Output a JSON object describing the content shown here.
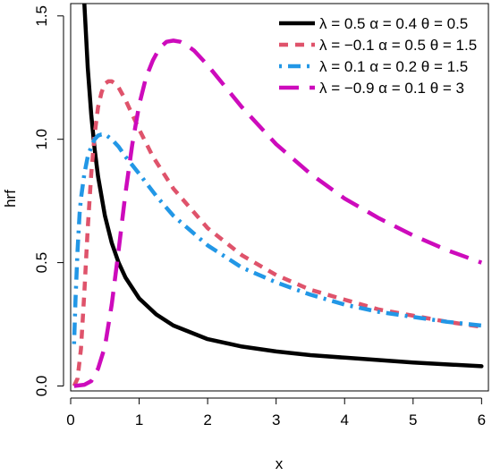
{
  "chart_data": {
    "type": "line",
    "xlabel": "x",
    "ylabel": "hrf",
    "xlim": [
      0,
      6.1
    ],
    "ylim": [
      -0.02,
      1.55
    ],
    "x_ticks": [
      {
        "value": 0,
        "label": "0"
      },
      {
        "value": 1,
        "label": "1"
      },
      {
        "value": 2,
        "label": "2"
      },
      {
        "value": 3,
        "label": "3"
      },
      {
        "value": 4,
        "label": "4"
      },
      {
        "value": 5,
        "label": "5"
      },
      {
        "value": 6,
        "label": "6"
      }
    ],
    "y_ticks": [
      {
        "value": 0.0,
        "label": "0.0"
      },
      {
        "value": 0.5,
        "label": "0.5"
      },
      {
        "value": 1.0,
        "label": "1.0"
      },
      {
        "value": 1.5,
        "label": "1.5"
      }
    ],
    "grid": false,
    "legend_position": "top-right",
    "series": [
      {
        "name": "λ = 0.5  α = 0.4  θ = 0.5",
        "color": "#000000",
        "dash": "solid",
        "x": [
          0.2,
          0.25,
          0.3,
          0.35,
          0.4,
          0.5,
          0.6,
          0.7,
          0.8,
          1.0,
          1.25,
          1.5,
          2.0,
          2.5,
          3.0,
          3.5,
          4.0,
          5.0,
          6.0
        ],
        "y": [
          1.55,
          1.29,
          1.1,
          0.96,
          0.85,
          0.69,
          0.58,
          0.5,
          0.44,
          0.355,
          0.29,
          0.245,
          0.19,
          0.16,
          0.14,
          0.125,
          0.115,
          0.095,
          0.08
        ]
      },
      {
        "name": "λ = −0.1  α = 0.5  θ = 1.5",
        "color": "#DF536B",
        "dash": "dashed",
        "x": [
          0.05,
          0.1,
          0.15,
          0.2,
          0.25,
          0.3,
          0.35,
          0.4,
          0.45,
          0.5,
          0.55,
          0.6,
          0.65,
          0.7,
          0.8,
          0.9,
          1.0,
          1.2,
          1.5,
          2.0,
          2.5,
          3.0,
          3.5,
          4.0,
          4.5,
          5.0,
          5.5,
          6.0
        ],
        "y": [
          0.0,
          0.03,
          0.15,
          0.38,
          0.64,
          0.86,
          1.02,
          1.13,
          1.19,
          1.225,
          1.235,
          1.235,
          1.225,
          1.21,
          1.16,
          1.1,
          1.04,
          0.93,
          0.8,
          0.64,
          0.53,
          0.45,
          0.39,
          0.35,
          0.31,
          0.285,
          0.26,
          0.24
        ]
      },
      {
        "name": "λ = 0.1  α = 0.2  θ = 1.5",
        "color": "#2297E6",
        "dash": "dotdash",
        "x": [
          0.05,
          0.07,
          0.1,
          0.13,
          0.15,
          0.2,
          0.25,
          0.3,
          0.35,
          0.4,
          0.45,
          0.5,
          0.6,
          0.7,
          0.8,
          1.0,
          1.25,
          1.5,
          2.0,
          2.5,
          3.0,
          3.5,
          4.0,
          4.5,
          5.0,
          5.5,
          6.0
        ],
        "y": [
          0.17,
          0.35,
          0.55,
          0.7,
          0.76,
          0.86,
          0.93,
          0.97,
          1.0,
          1.015,
          1.02,
          1.02,
          1.0,
          0.97,
          0.93,
          0.86,
          0.77,
          0.69,
          0.57,
          0.48,
          0.42,
          0.37,
          0.33,
          0.3,
          0.28,
          0.26,
          0.245
        ]
      },
      {
        "name": "λ = −0.9  α = 0.1  θ = 3",
        "color": "#CD0BBC",
        "dash": "longdash",
        "x": [
          0.05,
          0.2,
          0.3,
          0.4,
          0.5,
          0.6,
          0.7,
          0.8,
          0.9,
          1.0,
          1.1,
          1.2,
          1.3,
          1.4,
          1.5,
          1.6,
          1.7,
          1.8,
          2.0,
          2.5,
          3.0,
          3.5,
          4.0,
          4.5,
          5.0,
          5.5,
          6.0
        ],
        "y": [
          0.0,
          0.005,
          0.02,
          0.07,
          0.16,
          0.33,
          0.55,
          0.78,
          0.98,
          1.14,
          1.25,
          1.32,
          1.37,
          1.395,
          1.4,
          1.395,
          1.38,
          1.36,
          1.3,
          1.13,
          0.98,
          0.86,
          0.76,
          0.68,
          0.61,
          0.55,
          0.5
        ]
      }
    ]
  }
}
